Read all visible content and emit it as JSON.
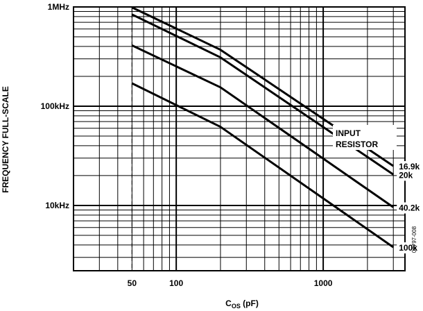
{
  "chart_data": {
    "type": "line",
    "title": "",
    "xlabel": "C",
    "xlabel_sub": "OS",
    "xlabel_unit": " (pF)",
    "ylabel": "FREQUENCY FULL-SCALE",
    "x_scale": "log",
    "y_scale": "log",
    "xlim": [
      20,
      3600
    ],
    "ylim": [
      2200,
      1000000
    ],
    "x_ticks": [
      {
        "value": 50,
        "label": "50"
      },
      {
        "value": 100,
        "label": "100"
      },
      {
        "value": 1000,
        "label": "1000"
      }
    ],
    "y_ticks": [
      {
        "value": 10000,
        "label": "10kHz"
      },
      {
        "value": 100000,
        "label": "100kHz"
      },
      {
        "value": 1000000,
        "label": "1MHz"
      }
    ],
    "grid": true,
    "reference_line": {
      "x": 50,
      "style": "dashed"
    },
    "legend_title": "INPUT\nRESISTOR",
    "annotation_lines": [
      "INPUT",
      "RESISTOR"
    ],
    "series": [
      {
        "name": "16.9k",
        "x": [
          50,
          200,
          3000
        ],
        "y": [
          990000,
          370000,
          25000
        ]
      },
      {
        "name": "20k",
        "x": [
          50,
          200,
          3000
        ],
        "y": [
          840000,
          310000,
          20500
        ]
      },
      {
        "name": "40.2k",
        "x": [
          50,
          200,
          3000
        ],
        "y": [
          410000,
          155000,
          9600
        ]
      },
      {
        "name": "100k",
        "x": [
          50,
          200,
          3000
        ],
        "y": [
          170000,
          62000,
          3800
        ]
      }
    ],
    "figure_id": "00797-008"
  }
}
